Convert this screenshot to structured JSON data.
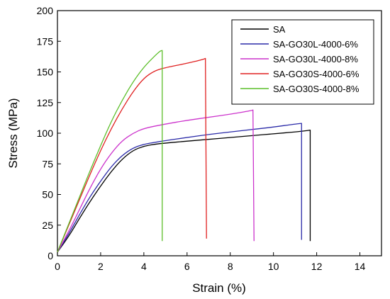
{
  "chart_data": {
    "type": "line",
    "xlabel": "Strain (%)",
    "ylabel": "Stress (MPa)",
    "xlim": [
      0,
      15
    ],
    "ylim": [
      0,
      200
    ],
    "x_ticks": [
      0,
      2,
      4,
      6,
      8,
      10,
      12,
      14
    ],
    "y_ticks": [
      0,
      25,
      50,
      75,
      100,
      125,
      150,
      175,
      200
    ],
    "grid": false,
    "legend_position": "top-right",
    "series": [
      {
        "name": "SA",
        "color": "#000000",
        "points": [
          [
            0,
            3
          ],
          [
            0.5,
            15
          ],
          [
            1,
            30
          ],
          [
            1.5,
            44
          ],
          [
            2,
            57
          ],
          [
            2.5,
            69
          ],
          [
            3,
            79
          ],
          [
            3.5,
            86
          ],
          [
            4,
            89.5
          ],
          [
            4.5,
            91
          ],
          [
            5,
            92
          ],
          [
            6,
            93.5
          ],
          [
            7,
            95
          ],
          [
            8,
            96.5
          ],
          [
            9,
            98
          ],
          [
            10,
            99.5
          ],
          [
            11,
            101
          ],
          [
            11.5,
            102
          ],
          [
            11.7,
            102.5
          ],
          [
            11.7,
            12
          ]
        ]
      },
      {
        "name": "SA-GO30L-4000-6%",
        "color": "#2a2aa8",
        "points": [
          [
            0,
            3
          ],
          [
            0.5,
            17
          ],
          [
            1,
            33
          ],
          [
            1.5,
            48
          ],
          [
            2,
            61
          ],
          [
            2.5,
            73
          ],
          [
            3,
            82
          ],
          [
            3.5,
            88
          ],
          [
            4,
            91
          ],
          [
            4.5,
            92.5
          ],
          [
            5,
            94
          ],
          [
            6,
            96.5
          ],
          [
            7,
            99
          ],
          [
            8,
            101
          ],
          [
            9,
            103
          ],
          [
            10,
            105
          ],
          [
            11,
            107.5
          ],
          [
            11.3,
            108
          ],
          [
            11.3,
            13
          ]
        ]
      },
      {
        "name": "SA-GO30L-4000-8%",
        "color": "#cc33cc",
        "points": [
          [
            0,
            3
          ],
          [
            0.5,
            19
          ],
          [
            1,
            37
          ],
          [
            1.5,
            55
          ],
          [
            2,
            71
          ],
          [
            2.5,
            84
          ],
          [
            3,
            94
          ],
          [
            3.5,
            100
          ],
          [
            4,
            104
          ],
          [
            5,
            107.5
          ],
          [
            6,
            110.5
          ],
          [
            7,
            113
          ],
          [
            8,
            115.5
          ],
          [
            9,
            118.5
          ],
          [
            9.05,
            119
          ],
          [
            9.1,
            12
          ]
        ]
      },
      {
        "name": "SA-GO30S-4000-6%",
        "color": "#e02020",
        "points": [
          [
            0,
            3
          ],
          [
            0.5,
            24
          ],
          [
            1,
            45
          ],
          [
            1.5,
            66
          ],
          [
            2,
            86
          ],
          [
            2.5,
            104
          ],
          [
            3,
            120
          ],
          [
            3.5,
            134
          ],
          [
            4,
            145
          ],
          [
            4.5,
            151
          ],
          [
            5,
            153.5
          ],
          [
            6,
            157
          ],
          [
            6.7,
            160
          ],
          [
            6.85,
            161
          ],
          [
            6.9,
            14
          ]
        ]
      },
      {
        "name": "SA-GO30S-4000-8%",
        "color": "#5cbf2a",
        "points": [
          [
            0,
            3
          ],
          [
            0.5,
            25
          ],
          [
            1,
            47
          ],
          [
            1.5,
            69
          ],
          [
            2,
            90
          ],
          [
            2.5,
            110
          ],
          [
            3,
            127
          ],
          [
            3.5,
            142
          ],
          [
            4,
            154
          ],
          [
            4.5,
            163
          ],
          [
            4.75,
            167
          ],
          [
            4.85,
            167.5
          ],
          [
            4.85,
            12
          ]
        ]
      }
    ]
  }
}
